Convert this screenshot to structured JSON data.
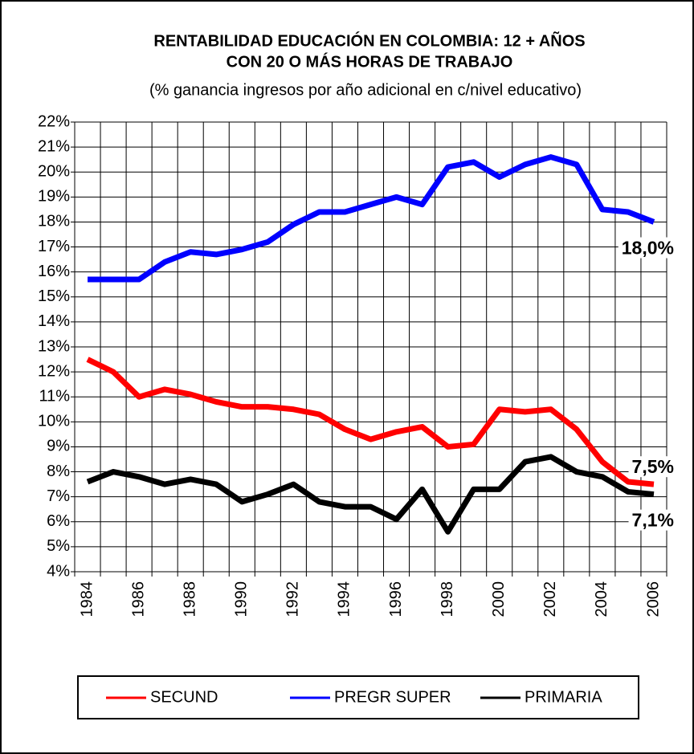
{
  "chart_data": {
    "type": "line",
    "title": [
      "RENTABILIDAD EDUCACIÓN EN  COLOMBIA: 12 + AÑOS",
      "CON 20 O MÁS HORAS DE TRABAJO"
    ],
    "subtitle": "(% ganancia ingresos por año adicional en c/nivel educativo)",
    "categories": [
      "1984",
      null,
      "1986",
      null,
      "1988",
      null,
      "1990",
      null,
      "1992",
      null,
      "1994",
      null,
      "1996",
      null,
      "1998",
      null,
      "2000",
      null,
      "2002",
      null,
      "2004",
      null,
      "2006"
    ],
    "series": [
      {
        "name": "SECUND",
        "color": "#ff0000",
        "values": [
          12.5,
          12.0,
          11.0,
          11.3,
          11.1,
          10.8,
          10.6,
          10.6,
          10.5,
          10.3,
          9.7,
          9.3,
          9.6,
          9.8,
          9.0,
          9.1,
          10.5,
          10.4,
          10.5,
          9.7,
          8.4,
          7.6,
          7.5
        ],
        "value_labels": [
          null,
          null,
          null,
          null,
          null,
          null,
          null,
          null,
          null,
          null,
          null,
          null,
          null,
          null,
          null,
          null,
          null,
          null,
          null,
          null,
          null,
          null,
          "7,5%"
        ]
      },
      {
        "name": "PREGR SUPER",
        "color": "#0000ff",
        "values": [
          15.7,
          15.7,
          15.7,
          16.4,
          16.8,
          16.7,
          16.9,
          17.2,
          17.9,
          18.4,
          18.4,
          18.7,
          19.0,
          18.7,
          20.2,
          20.4,
          19.8,
          20.3,
          20.6,
          20.3,
          18.5,
          18.4,
          18.0
        ],
        "value_labels": [
          null,
          null,
          null,
          null,
          null,
          null,
          null,
          null,
          null,
          null,
          null,
          null,
          null,
          null,
          null,
          null,
          null,
          null,
          null,
          null,
          null,
          null,
          "18,0%"
        ]
      },
      {
        "name": "PRIMARIA",
        "color": "#000000",
        "values": [
          7.6,
          8.0,
          7.8,
          7.5,
          7.7,
          7.5,
          6.8,
          7.1,
          7.5,
          6.8,
          6.6,
          6.6,
          6.1,
          7.3,
          5.6,
          7.3,
          7.3,
          8.4,
          8.6,
          8.0,
          7.8,
          7.2,
          7.1
        ],
        "value_labels": [
          null,
          null,
          null,
          null,
          null,
          null,
          null,
          null,
          null,
          null,
          null,
          null,
          null,
          null,
          null,
          null,
          null,
          null,
          null,
          null,
          null,
          null,
          "7,1%"
        ]
      }
    ],
    "ylim": [
      4,
      22
    ],
    "yticks": [
      {
        "value": 4,
        "label": "4%"
      },
      {
        "value": 5,
        "label": "5%"
      },
      {
        "value": 6,
        "label": "6%"
      },
      {
        "value": 7,
        "label": "7%"
      },
      {
        "value": 8,
        "label": "8%"
      },
      {
        "value": 9,
        "label": "9%"
      },
      {
        "value": 10,
        "label": "10%"
      },
      {
        "value": 11,
        "label": "11%"
      },
      {
        "value": 12,
        "label": "12%"
      },
      {
        "value": 13,
        "label": "13%"
      },
      {
        "value": 14,
        "label": "14%"
      },
      {
        "value": 15,
        "label": "15%"
      },
      {
        "value": 16,
        "label": "16%"
      },
      {
        "value": 17,
        "label": "17%"
      },
      {
        "value": 18,
        "label": "18%"
      },
      {
        "value": 19,
        "label": "19%"
      },
      {
        "value": 20,
        "label": "20%"
      },
      {
        "value": 21,
        "label": "21%"
      },
      {
        "value": 22,
        "label": "22%"
      }
    ],
    "grid": true,
    "legend": "bottom"
  }
}
